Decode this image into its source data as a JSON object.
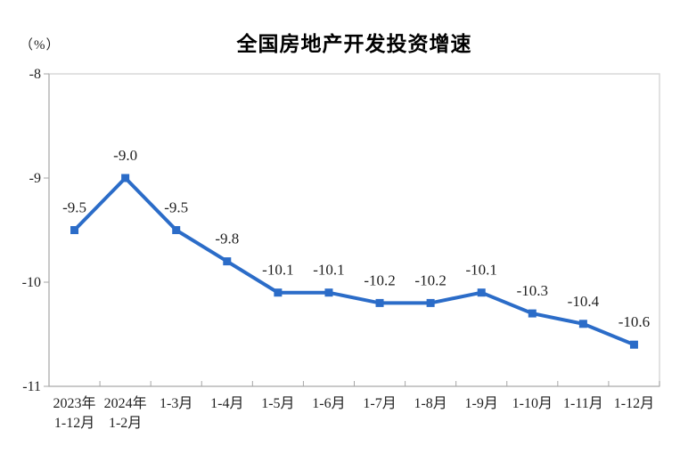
{
  "header": {
    "title": "全国房地产开发投资增速",
    "unit_label": "（%）"
  },
  "chart_data": {
    "type": "line",
    "title": "全国房地产开发投资增速",
    "ylabel": "（%）",
    "xlabel": "",
    "categories": [
      "2023年\n1-12月",
      "2024年\n1-2月",
      "1-3月",
      "1-4月",
      "1-5月",
      "1-6月",
      "1-7月",
      "1-8月",
      "1-9月",
      "1-10月",
      "1-11月",
      "1-12月"
    ],
    "values": [
      -9.5,
      -9.0,
      -9.5,
      -9.8,
      -10.1,
      -10.1,
      -10.2,
      -10.2,
      -10.1,
      -10.3,
      -10.4,
      -10.6
    ],
    "point_labels": [
      "-9.5",
      "-9.0",
      "-9.5",
      "-9.8",
      "-10.1",
      "-10.1",
      "-10.2",
      "-10.2",
      "-10.1",
      "-10.3",
      "-10.4",
      "-10.6"
    ],
    "ylim": [
      -11,
      -8
    ],
    "yticks": [
      -8,
      -9,
      -10,
      -11
    ],
    "grid": false,
    "legend_position": "none",
    "line_color": "#2b6cc8",
    "marker": "square",
    "axis_color": "#a6a6a6",
    "border_color": "#d9d9d9",
    "text_color": "#1f1f1f"
  }
}
